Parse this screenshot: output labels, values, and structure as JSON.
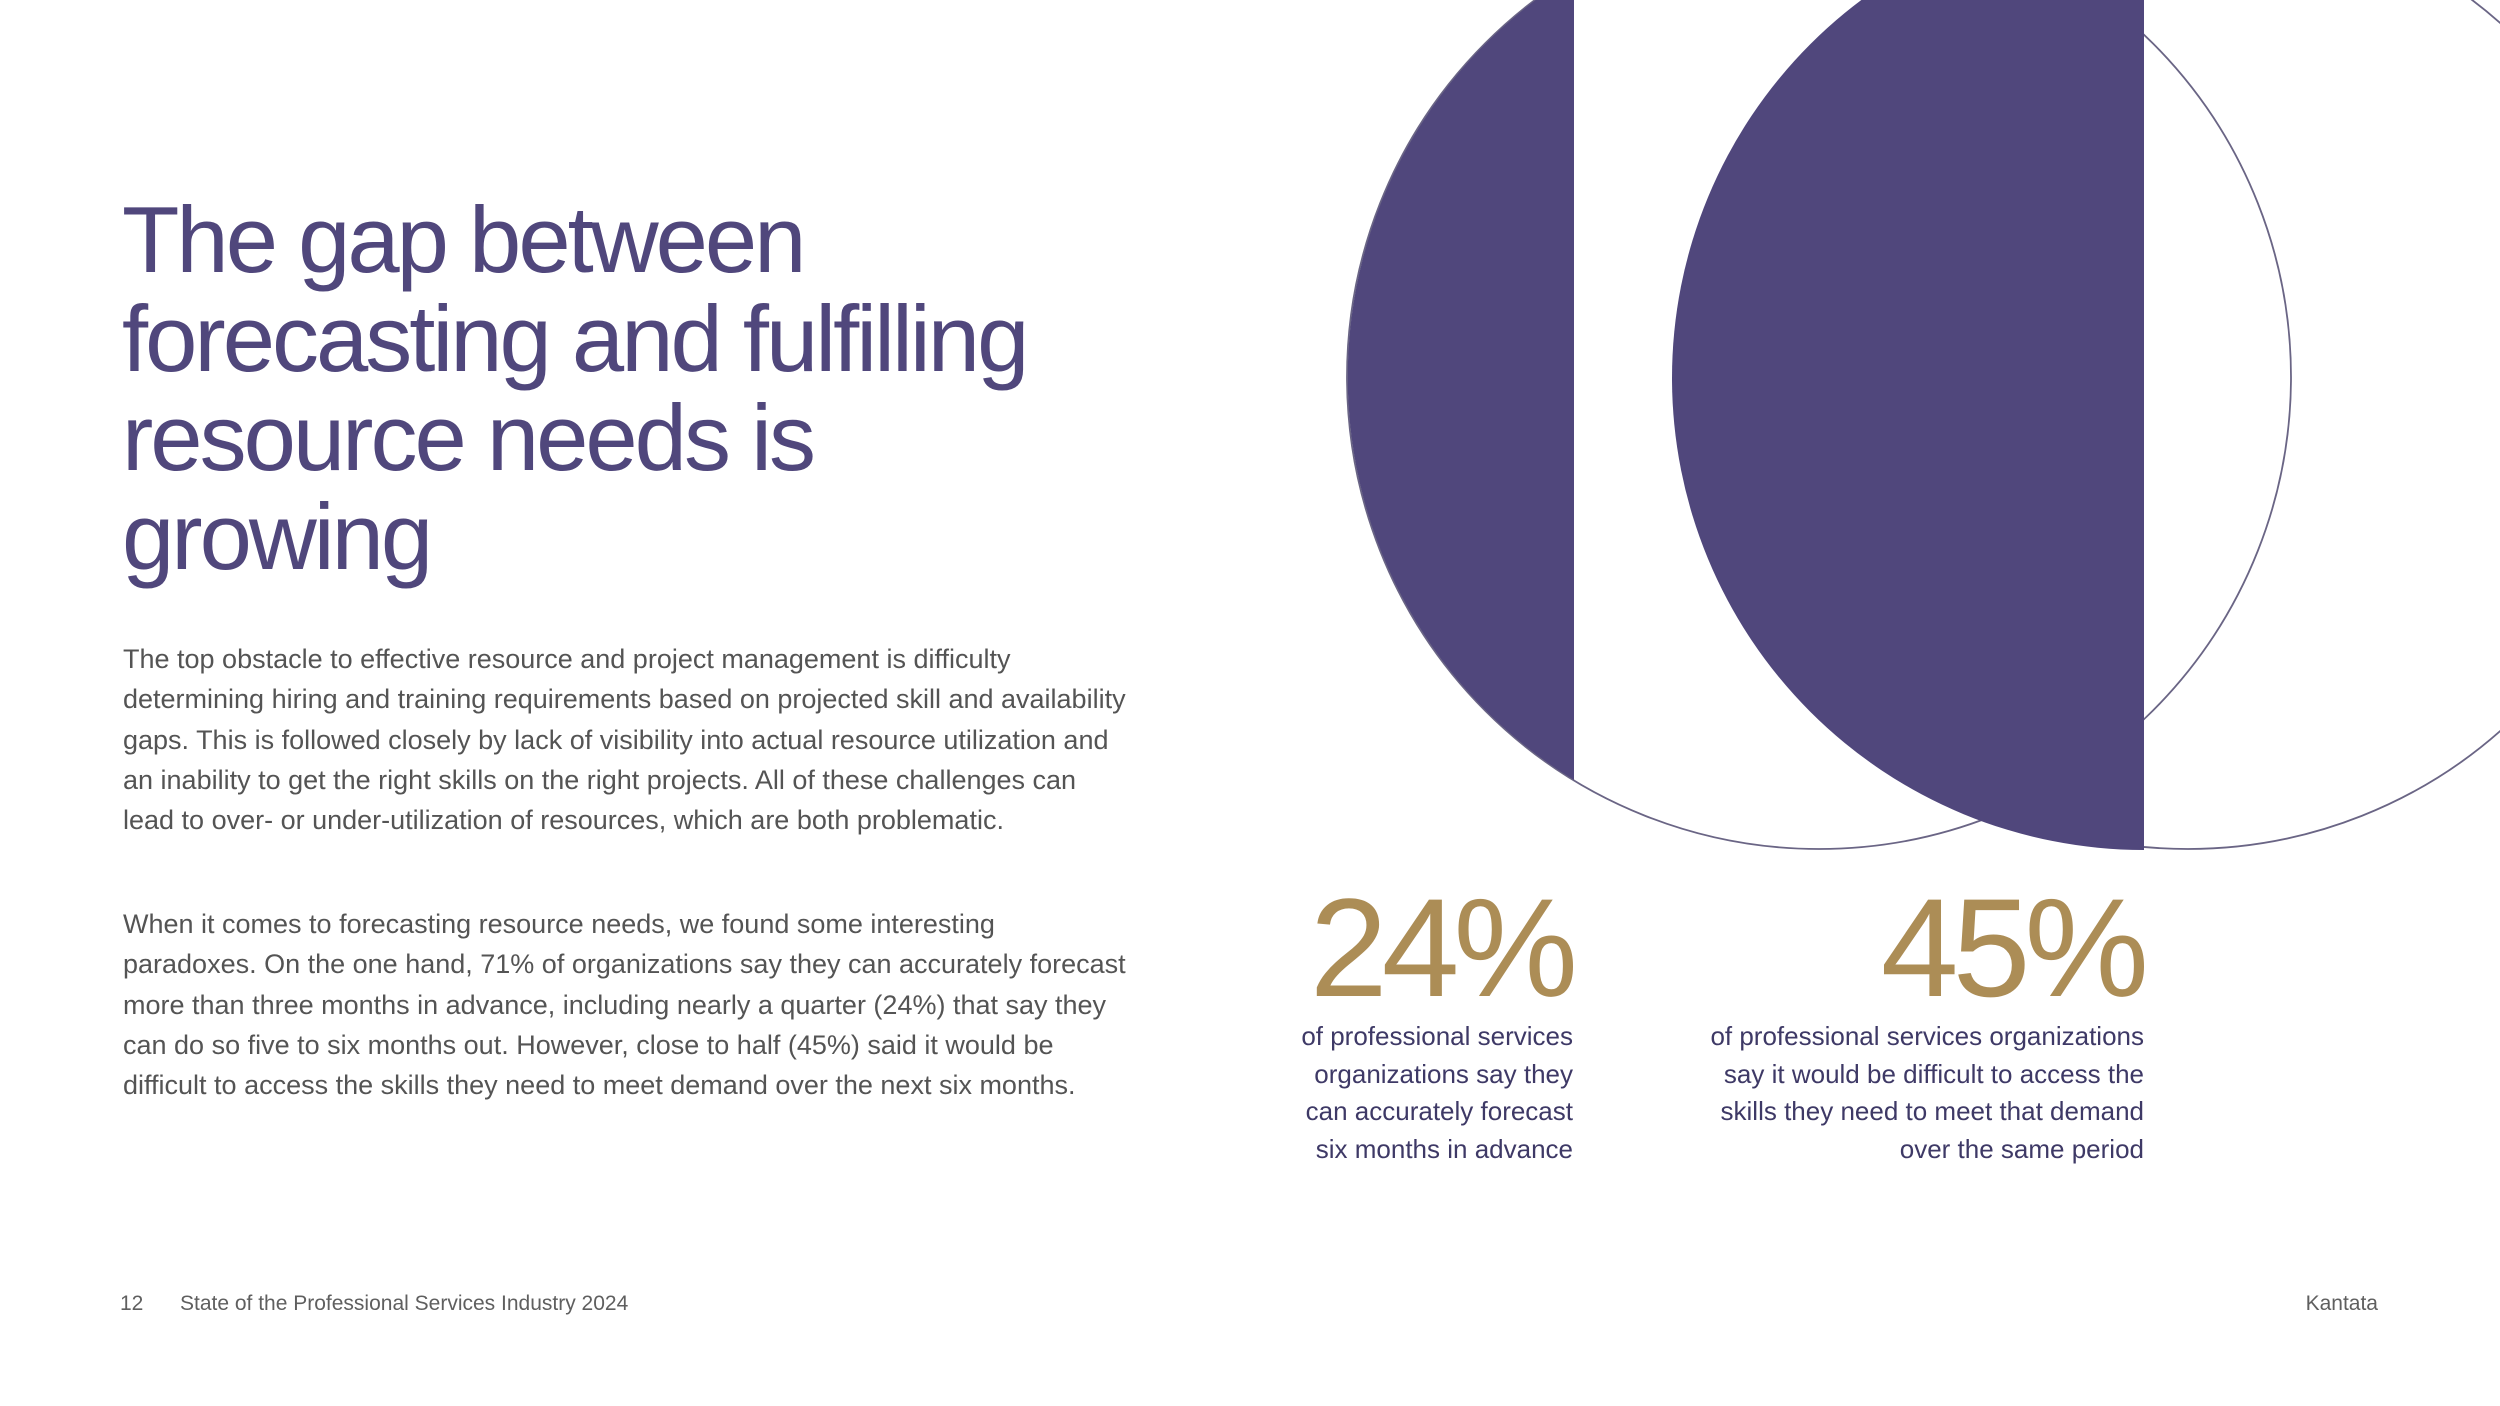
{
  "headline": {
    "lines": [
      "The gap between",
      "forecasting and fulfilling",
      "resource needs is",
      "growing"
    ]
  },
  "body": {
    "paragraph_1": "The top obstacle to effective resource and project management is difficulty determining hiring and training requirements based on projected skill and availability gaps. This is followed closely by lack of visibility into actual resource utilization and an inability to get the right skills on the right projects. All of these challenges can lead to over- or under-utilization of resources, which are both problematic.",
    "paragraph_2": "When it comes to forecasting resource needs, we found some interesting paradoxes. On the one hand, 71% of organizations say they can accurately forecast more than three months in advance, including nearly a quarter (24%) that say they can do so five to six months out. However, close to half (45%) said it would be difficult to access the skills they need to meet demand over the next six months."
  },
  "stats": [
    {
      "value": "24%",
      "caption_lines": [
        "of professional services",
        "organizations say they",
        "can accurately forecast",
        "six months in advance"
      ]
    },
    {
      "value": "45%",
      "caption_lines": [
        "of professional services organizations",
        "say it would be difficult to access the",
        "skills they need to meet that demand",
        "over the same period"
      ]
    }
  ],
  "footer": {
    "page_number": "12",
    "report_title": "State of the Professional Services Industry 2024",
    "brand": "Kantata"
  },
  "colors": {
    "headline": "#50477c",
    "shape_fill": "#50477c",
    "outline": "#6a6585",
    "stat_number": "#ac8d56",
    "stat_caption": "#3e3966",
    "body_text": "#545454"
  }
}
